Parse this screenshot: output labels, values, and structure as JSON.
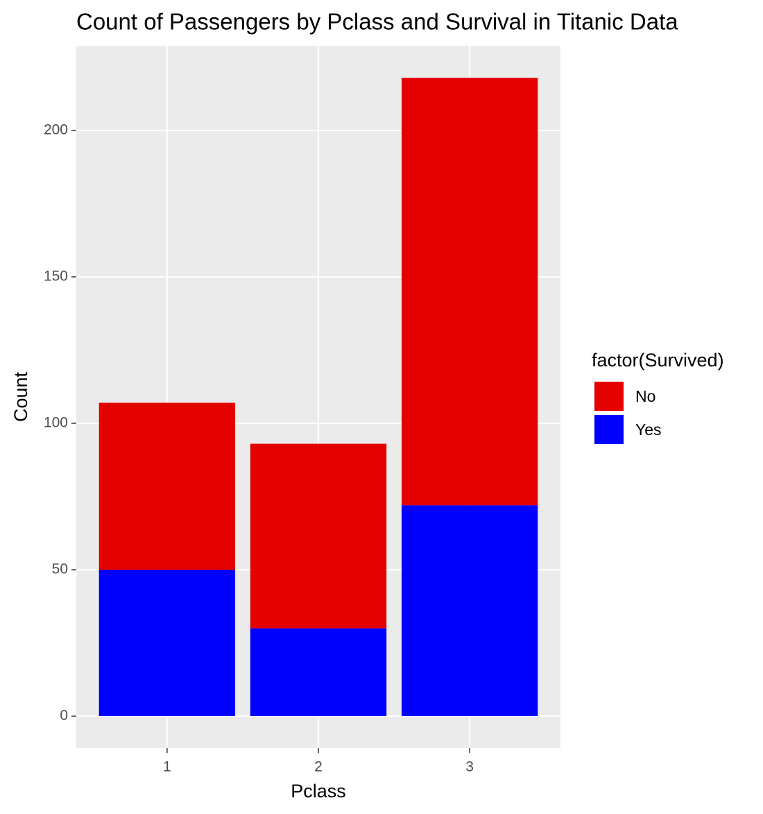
{
  "chart_data": {
    "type": "stacked_bar",
    "title": "Count of Passengers by Pclass and Survival in Titanic Data",
    "x_label": "Pclass",
    "y_label": "Count",
    "categories": [
      "1",
      "2",
      "3"
    ],
    "legend_title": "factor(Survived)",
    "legend_position": "right",
    "series": [
      {
        "name": "No",
        "color": "#e50000",
        "values": [
          57,
          63,
          146
        ]
      },
      {
        "name": "Yes",
        "color": "#0000ff",
        "values": [
          50,
          30,
          72
        ]
      }
    ],
    "ylim": [
      -10.9,
      228.9
    ],
    "yticks": [
      0,
      50,
      100,
      150,
      200
    ],
    "grid": true
  }
}
